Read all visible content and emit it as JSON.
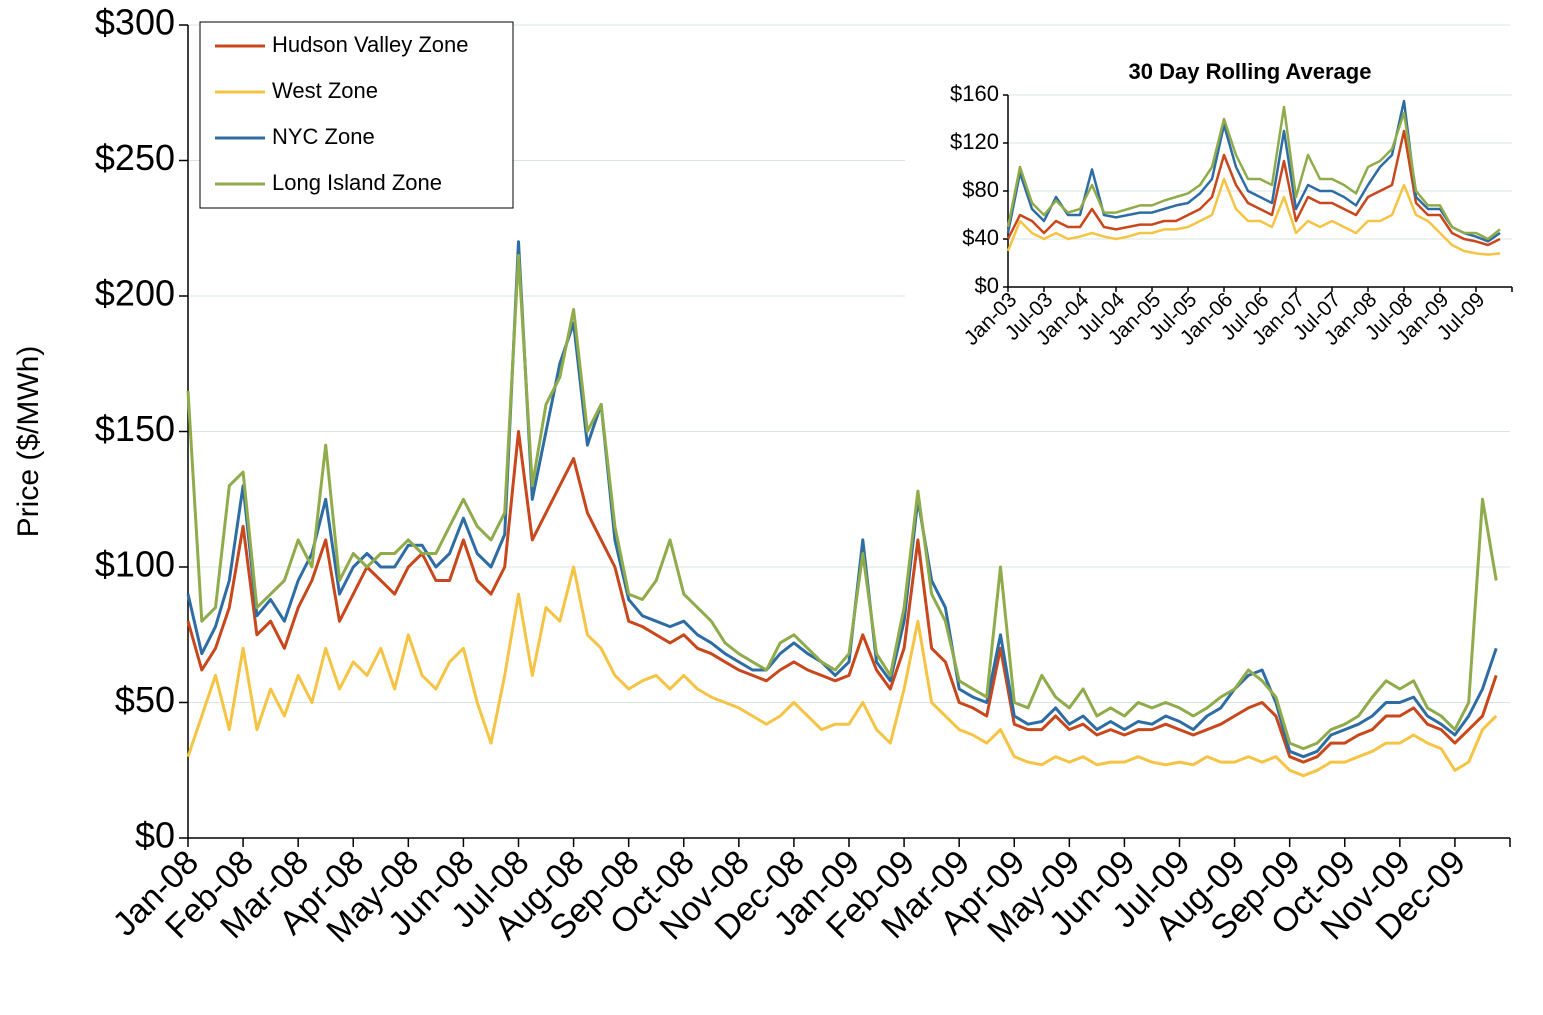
{
  "chart_data": [
    {
      "type": "line",
      "y_label": "Price ($/MWh)",
      "categories": [
        "Jan-08",
        null,
        null,
        null,
        "Feb-08",
        null,
        null,
        null,
        "Mar-08",
        null,
        null,
        null,
        "Apr-08",
        null,
        null,
        null,
        "May-08",
        null,
        null,
        null,
        "Jun-08",
        null,
        null,
        null,
        "Jul-08",
        null,
        null,
        null,
        "Aug-08",
        null,
        null,
        null,
        "Sep-08",
        null,
        null,
        null,
        "Oct-08",
        null,
        null,
        null,
        "Nov-08",
        null,
        null,
        null,
        "Dec-08",
        null,
        null,
        null,
        "Jan-09",
        null,
        null,
        null,
        "Feb-09",
        null,
        null,
        null,
        "Mar-09",
        null,
        null,
        null,
        "Apr-09",
        null,
        null,
        null,
        "May-09",
        null,
        null,
        null,
        "Jun-09",
        null,
        null,
        null,
        "Jul-09",
        null,
        null,
        null,
        "Aug-09",
        null,
        null,
        null,
        "Sep-09",
        null,
        null,
        null,
        "Oct-09",
        null,
        null,
        null,
        "Nov-09",
        null,
        null,
        null,
        "Dec-09",
        null,
        null,
        null
      ],
      "ylim": [
        0,
        300
      ],
      "yticks": [
        {
          "value": 0,
          "label": "$0"
        },
        {
          "value": 50,
          "label": "$50"
        },
        {
          "value": 100,
          "label": "$100"
        },
        {
          "value": 150,
          "label": "$150"
        },
        {
          "value": 200,
          "label": "$200"
        },
        {
          "value": 250,
          "label": "$250"
        },
        {
          "value": 300,
          "label": "$300"
        }
      ],
      "grid": true,
      "legend": "upper left",
      "series": [
        {
          "name": "Hudson Valley Zone",
          "color": "#c8471c",
          "values": [
            80,
            62,
            70,
            85,
            115,
            75,
            80,
            70,
            85,
            95,
            110,
            80,
            90,
            100,
            95,
            90,
            100,
            105,
            95,
            95,
            110,
            95,
            90,
            100,
            150,
            110,
            120,
            130,
            140,
            120,
            110,
            100,
            80,
            78,
            75,
            72,
            75,
            70,
            68,
            65,
            62,
            60,
            58,
            62,
            65,
            62,
            60,
            58,
            60,
            75,
            62,
            55,
            70,
            110,
            70,
            65,
            50,
            48,
            45,
            70,
            42,
            40,
            40,
            45,
            40,
            42,
            38,
            40,
            38,
            40,
            40,
            42,
            40,
            38,
            40,
            42,
            45,
            48,
            50,
            45,
            30,
            28,
            30,
            35,
            35,
            38,
            40,
            45,
            45,
            48,
            42,
            40,
            35,
            40,
            45,
            60
          ]
        },
        {
          "name": "West Zone",
          "color": "#f5c445",
          "values": [
            30,
            45,
            60,
            40,
            70,
            40,
            55,
            45,
            60,
            50,
            70,
            55,
            65,
            60,
            70,
            55,
            75,
            60,
            55,
            65,
            70,
            50,
            35,
            60,
            90,
            60,
            85,
            80,
            100,
            75,
            70,
            60,
            55,
            58,
            60,
            55,
            60,
            55,
            52,
            50,
            48,
            45,
            42,
            45,
            50,
            45,
            40,
            42,
            42,
            50,
            40,
            35,
            55,
            80,
            50,
            45,
            40,
            38,
            35,
            40,
            30,
            28,
            27,
            30,
            28,
            30,
            27,
            28,
            28,
            30,
            28,
            27,
            28,
            27,
            30,
            28,
            28,
            30,
            28,
            30,
            25,
            23,
            25,
            28,
            28,
            30,
            32,
            35,
            35,
            38,
            35,
            33,
            25,
            28,
            40,
            45
          ]
        },
        {
          "name": "NYC Zone",
          "color": "#2e6da4",
          "values": [
            90,
            68,
            78,
            95,
            130,
            82,
            88,
            80,
            95,
            105,
            125,
            90,
            100,
            105,
            100,
            100,
            108,
            108,
            100,
            105,
            118,
            105,
            100,
            112,
            220,
            125,
            150,
            175,
            190,
            145,
            160,
            110,
            88,
            82,
            80,
            78,
            80,
            75,
            72,
            68,
            65,
            62,
            62,
            68,
            72,
            68,
            65,
            60,
            65,
            110,
            65,
            58,
            80,
            125,
            95,
            85,
            55,
            52,
            50,
            75,
            45,
            42,
            43,
            48,
            42,
            45,
            40,
            43,
            40,
            43,
            42,
            45,
            43,
            40,
            45,
            48,
            55,
            60,
            62,
            50,
            32,
            30,
            32,
            38,
            40,
            42,
            45,
            50,
            50,
            52,
            45,
            42,
            38,
            45,
            55,
            70
          ]
        },
        {
          "name": "Long Island Zone",
          "color": "#8fab4a",
          "values": [
            165,
            80,
            85,
            130,
            135,
            85,
            90,
            95,
            110,
            100,
            145,
            95,
            105,
            100,
            105,
            105,
            110,
            105,
            105,
            115,
            125,
            115,
            110,
            120,
            215,
            130,
            160,
            170,
            195,
            150,
            160,
            115,
            90,
            88,
            95,
            110,
            90,
            85,
            80,
            72,
            68,
            65,
            62,
            72,
            75,
            70,
            65,
            62,
            68,
            105,
            68,
            60,
            85,
            128,
            90,
            80,
            58,
            55,
            52,
            100,
            50,
            48,
            60,
            52,
            48,
            55,
            45,
            48,
            45,
            50,
            48,
            50,
            48,
            45,
            48,
            52,
            55,
            62,
            58,
            52,
            35,
            33,
            35,
            40,
            42,
            45,
            52,
            58,
            55,
            58,
            48,
            45,
            40,
            50,
            125,
            95
          ]
        }
      ]
    },
    {
      "type": "line",
      "title": "30 Day Rolling Average",
      "categories": [
        "Jan-03",
        null,
        null,
        "Jul-03",
        null,
        null,
        "Jan-04",
        null,
        null,
        "Jul-04",
        null,
        null,
        "Jan-05",
        null,
        null,
        "Jul-05",
        null,
        null,
        "Jan-06",
        null,
        null,
        "Jul-06",
        null,
        null,
        "Jan-07",
        null,
        null,
        "Jul-07",
        null,
        null,
        "Jan-08",
        null,
        null,
        "Jul-08",
        null,
        null,
        "Jan-09",
        null,
        null,
        "Jul-09",
        null,
        null
      ],
      "ylim": [
        0,
        160
      ],
      "yticks": [
        {
          "value": 0,
          "label": "$0"
        },
        {
          "value": 40,
          "label": "$40"
        },
        {
          "value": 80,
          "label": "$80"
        },
        {
          "value": 120,
          "label": "$120"
        },
        {
          "value": 160,
          "label": "$160"
        }
      ],
      "grid": true,
      "series": [
        {
          "color": "#c8471c",
          "values": [
            40,
            60,
            55,
            45,
            55,
            50,
            50,
            65,
            50,
            48,
            50,
            52,
            52,
            55,
            55,
            60,
            65,
            75,
            110,
            85,
            70,
            65,
            60,
            105,
            55,
            75,
            70,
            70,
            65,
            60,
            75,
            80,
            85,
            130,
            70,
            60,
            60,
            45,
            40,
            38,
            35,
            40
          ]
        },
        {
          "color": "#f5c445",
          "values": [
            30,
            55,
            45,
            40,
            45,
            40,
            42,
            45,
            42,
            40,
            42,
            45,
            45,
            48,
            48,
            50,
            55,
            60,
            90,
            65,
            55,
            55,
            50,
            75,
            45,
            55,
            50,
            55,
            50,
            45,
            55,
            55,
            60,
            85,
            60,
            55,
            45,
            35,
            30,
            28,
            27,
            28
          ]
        },
        {
          "color": "#2e6da4",
          "values": [
            45,
            95,
            65,
            55,
            75,
            60,
            60,
            98,
            60,
            58,
            60,
            62,
            62,
            65,
            68,
            70,
            78,
            90,
            135,
            100,
            80,
            75,
            70,
            130,
            65,
            85,
            80,
            80,
            75,
            68,
            85,
            100,
            110,
            155,
            75,
            65,
            65,
            50,
            45,
            42,
            38,
            45
          ]
        },
        {
          "color": "#8fab4a",
          "values": [
            50,
            100,
            70,
            60,
            72,
            62,
            65,
            85,
            62,
            62,
            65,
            68,
            68,
            72,
            75,
            78,
            85,
            100,
            140,
            110,
            90,
            90,
            85,
            150,
            75,
            110,
            90,
            90,
            85,
            78,
            100,
            105,
            115,
            145,
            80,
            68,
            68,
            50,
            45,
            45,
            40,
            48
          ]
        }
      ]
    }
  ]
}
